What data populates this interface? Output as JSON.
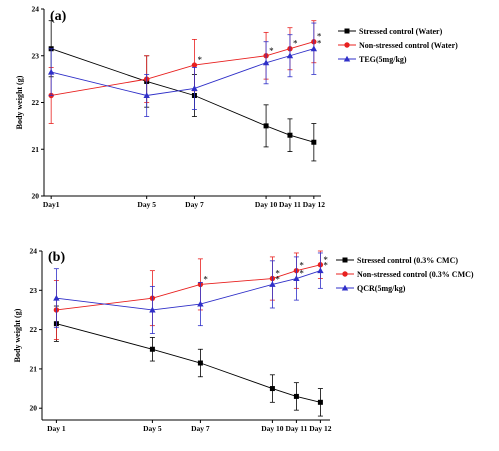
{
  "chart_data": [
    {
      "type": "line",
      "panel_label": "(a)",
      "ylabel": "Body weight (g)",
      "ylim": [
        20,
        24
      ],
      "yticks": [
        20,
        21,
        22,
        23,
        24
      ],
      "categories": [
        "Day1",
        "Day 5",
        "Day 7",
        "Day 10",
        "Day 11",
        "Day 12"
      ],
      "x": [
        1,
        5,
        7,
        10,
        11,
        12
      ],
      "legend_position": "top-right",
      "series": [
        {
          "name": "Stressed  control (Water)",
          "color": "#000000",
          "marker": "square",
          "values": [
            23.15,
            22.45,
            22.15,
            21.5,
            21.3,
            21.15
          ],
          "errors": [
            0.6,
            0.55,
            0.45,
            0.45,
            0.35,
            0.4
          ],
          "stars": [
            "",
            "",
            "",
            "",
            "",
            ""
          ]
        },
        {
          "name": "Non-stressed control (Water)",
          "color": "#e8201f",
          "marker": "circle",
          "values": [
            22.15,
            22.5,
            22.8,
            23.0,
            23.15,
            23.3
          ],
          "errors": [
            0.6,
            0.5,
            0.55,
            0.5,
            0.45,
            0.45
          ],
          "stars": [
            "",
            "",
            "*",
            "*",
            "*",
            "*"
          ]
        },
        {
          "name": "TEG(5mg/kg)",
          "color": "#2f2fc8",
          "marker": "triangle",
          "values": [
            22.65,
            22.15,
            22.3,
            22.85,
            23.0,
            23.15
          ],
          "errors": [
            0.5,
            0.45,
            0.45,
            0.45,
            0.45,
            0.55
          ],
          "stars": [
            "",
            "",
            "",
            "",
            "",
            "*"
          ]
        }
      ]
    },
    {
      "type": "line",
      "panel_label": "(b)",
      "ylabel": "Body weight (g)",
      "ylim": [
        19.7,
        24
      ],
      "yticks": [
        20,
        21,
        22,
        23,
        24
      ],
      "categories": [
        "Day 1",
        "Day 5",
        "Day 7",
        "Day 10",
        "Day 11",
        "Day 12"
      ],
      "x": [
        1,
        5,
        7,
        10,
        11,
        12
      ],
      "legend_position": "top-right",
      "series": [
        {
          "name": "Stressed control (0.3% CMC)",
          "color": "#000000",
          "marker": "square",
          "values": [
            22.15,
            21.5,
            21.15,
            20.5,
            20.3,
            20.15
          ],
          "errors": [
            0.45,
            0.3,
            0.35,
            0.35,
            0.35,
            0.35
          ],
          "stars": [
            "",
            "",
            "",
            "",
            "",
            ""
          ]
        },
        {
          "name": "Non-stressed control (0.3% CMC)",
          "color": "#e8201f",
          "marker": "circle",
          "values": [
            22.5,
            22.8,
            23.15,
            23.3,
            23.5,
            23.65
          ],
          "errors": [
            0.75,
            0.7,
            0.65,
            0.55,
            0.45,
            0.35
          ],
          "stars": [
            "",
            "",
            "*",
            "*",
            "*",
            "*"
          ]
        },
        {
          "name": "QCR(5mg/kg)",
          "color": "#2f2fc8",
          "marker": "triangle",
          "values": [
            22.8,
            22.5,
            22.65,
            23.15,
            23.3,
            23.5
          ],
          "errors": [
            0.75,
            0.6,
            0.55,
            0.6,
            0.55,
            0.45
          ],
          "stars": [
            "",
            "",
            "",
            "*",
            "*",
            "*"
          ]
        }
      ]
    }
  ]
}
